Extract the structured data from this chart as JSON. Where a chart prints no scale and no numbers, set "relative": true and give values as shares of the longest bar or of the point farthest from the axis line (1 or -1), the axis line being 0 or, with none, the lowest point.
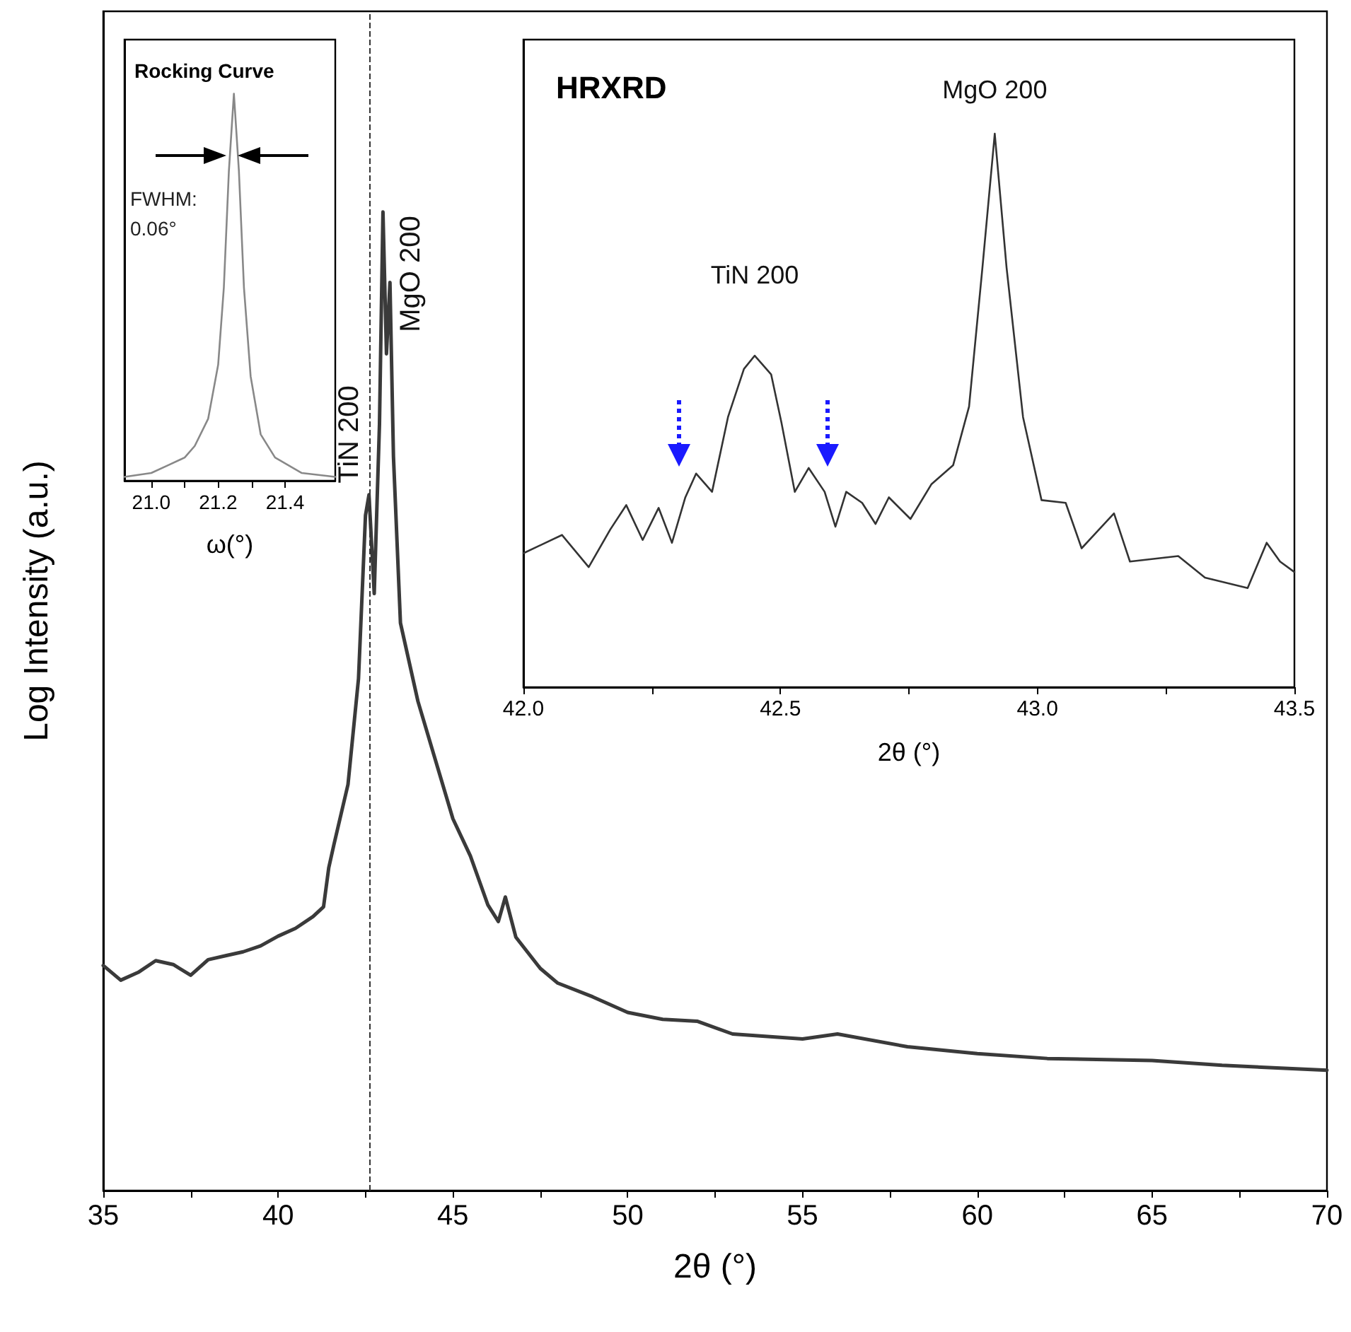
{
  "chart_data": [
    {
      "type": "line",
      "xlabel": "2θ (°)",
      "ylabel": "Log Intensity (a.u.)",
      "relative": true,
      "xlim": [
        35,
        70
      ],
      "xticks": [
        35,
        {
          "value": 37.5,
          "label": null
        },
        40,
        {
          "value": 42.5,
          "label": null
        },
        45,
        {
          "value": 47.5,
          "label": null
        },
        50,
        {
          "value": 52.5,
          "label": null
        },
        55,
        {
          "value": 57.5,
          "label": null
        },
        60,
        {
          "value": 62.5,
          "label": null
        },
        65,
        {
          "value": 67.5,
          "label": null
        },
        70
      ],
      "marker": "none",
      "line_style": "solid",
      "series": [
        {
          "color": "#3a3a3a",
          "x": [
            35,
            35.5,
            36,
            36.5,
            37,
            37.5,
            38,
            38.5,
            39,
            39.5,
            40,
            40.5,
            41,
            41.3,
            41.45,
            41.6,
            42,
            42.3,
            42.5,
            42.6,
            42.75,
            42.9,
            43.0,
            43.1,
            43.2,
            43.3,
            43.5,
            44,
            44.5,
            45,
            45.5,
            46,
            46.3,
            46.5,
            46.8,
            47.5,
            48,
            49,
            50,
            51,
            52,
            53,
            55,
            56,
            58,
            60,
            62,
            65,
            67,
            70
          ],
          "values": [
            0.23,
            0.215,
            0.223,
            0.235,
            0.231,
            0.22,
            0.236,
            0.24,
            0.244,
            0.25,
            0.26,
            0.268,
            0.28,
            0.29,
            0.33,
            0.354,
            0.415,
            0.523,
            0.69,
            0.711,
            0.61,
            0.783,
            1,
            0.855,
            0.928,
            0.75,
            0.58,
            0.5,
            0.44,
            0.38,
            0.342,
            0.292,
            0.275,
            0.3,
            0.259,
            0.227,
            0.212,
            0.198,
            0.182,
            0.175,
            0.173,
            0.16,
            0.155,
            0.16,
            0.147,
            0.14,
            0.135,
            0.133,
            0.128,
            0.123
          ]
        }
      ],
      "annotations": [
        {
          "text": "TiN 200",
          "x": 42.6,
          "y": 0.711
        },
        {
          "text": "MgO 200",
          "x": 43.0,
          "y": 1
        }
      ],
      "ref_lines": [
        {
          "axis": "x",
          "value": 42.6,
          "color": "#333333",
          "line_style": "dashed"
        }
      ]
    },
    {
      "type": "line",
      "title": "Rocking Curve",
      "xlabel": "ω(°)",
      "relative": true,
      "xlim": [
        20.92,
        21.55
      ],
      "xticks": [
        {
          "value": 21.0,
          "label": "21.0"
        },
        {
          "value": 21.1,
          "label": null
        },
        21.2,
        {
          "value": 21.3,
          "label": null
        },
        21.4
      ],
      "marker": "none",
      "line_style": "solid",
      "series": [
        {
          "color": "#888888",
          "x": [
            20.92,
            21.0,
            21.05,
            21.1,
            21.13,
            21.17,
            21.2,
            21.217,
            21.232,
            21.247,
            21.262,
            21.277,
            21.297,
            21.327,
            21.37,
            21.45,
            21.55
          ],
          "values": [
            0.01,
            0.02,
            0.04,
            0.06,
            0.09,
            0.16,
            0.3,
            0.5,
            0.8,
            1,
            0.8,
            0.5,
            0.27,
            0.12,
            0.06,
            0.02,
            0.01
          ]
        }
      ],
      "annotations": [
        "FWHM:\n0.06°"
      ]
    },
    {
      "type": "line",
      "title": "HRXRD",
      "xlabel": "2θ (°)",
      "relative": true,
      "xlim": [
        42.0,
        43.5
      ],
      "xticks": [
        {
          "value": 42.0,
          "label": "42.0"
        },
        {
          "value": 42.25,
          "label": null
        },
        42.5,
        {
          "value": 42.75,
          "label": null
        },
        {
          "value": 43.0,
          "label": "43.0"
        },
        {
          "value": 43.25,
          "label": null
        },
        43.5
      ],
      "marker": "none",
      "line_style": "solid",
      "series": [
        {
          "color": "#333333",
          "x": [
            42.0,
            42.075,
            42.127,
            42.169,
            42.2,
            42.232,
            42.263,
            42.289,
            42.315,
            42.336,
            42.367,
            42.398,
            42.429,
            42.45,
            42.482,
            42.502,
            42.528,
            42.555,
            42.586,
            42.607,
            42.628,
            42.659,
            42.685,
            42.711,
            42.753,
            42.794,
            42.836,
            42.867,
            42.893,
            42.917,
            42.94,
            42.972,
            43.008,
            43.055,
            43.086,
            43.149,
            43.18,
            43.274,
            43.326,
            43.409,
            43.446,
            43.472,
            43.5
          ],
          "values": [
            0.242,
            0.275,
            0.217,
            0.285,
            0.329,
            0.266,
            0.324,
            0.261,
            0.343,
            0.386,
            0.353,
            0.488,
            0.575,
            0.599,
            0.565,
            0.478,
            0.353,
            0.396,
            0.353,
            0.29,
            0.353,
            0.333,
            0.295,
            0.343,
            0.304,
            0.367,
            0.401,
            0.507,
            0.758,
            1,
            0.758,
            0.488,
            0.338,
            0.333,
            0.251,
            0.314,
            0.227,
            0.237,
            0.198,
            0.179,
            0.261,
            0.227,
            0.208
          ]
        }
      ],
      "annotations": [
        {
          "text": "TiN 200",
          "x": 42.45,
          "y": 0.599
        },
        {
          "text": "MgO 200",
          "x": 42.917,
          "y": 1
        }
      ]
    }
  ]
}
